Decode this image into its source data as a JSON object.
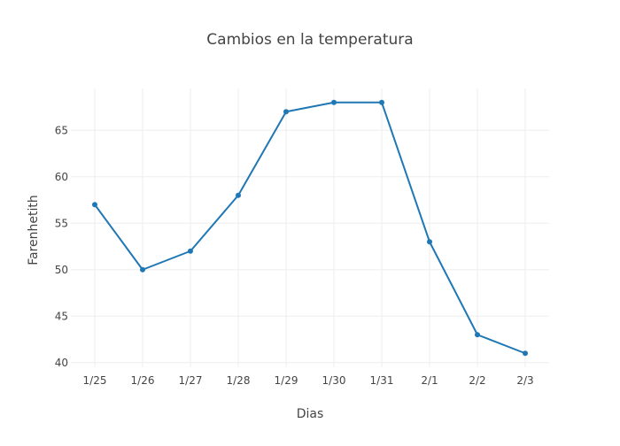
{
  "chart_data": {
    "type": "line",
    "title": "Cambios en la temperatura",
    "xlabel": "Dias",
    "ylabel": "Farenhetith",
    "categories": [
      "1/25",
      "1/26",
      "1/27",
      "1/28",
      "1/29",
      "1/30",
      "1/31",
      "2/1",
      "2/2",
      "2/3"
    ],
    "series": [
      {
        "values": [
          57,
          50,
          52,
          58,
          67,
          68,
          68,
          53,
          43,
          41
        ],
        "color": "#1f77b4",
        "markers": true
      }
    ],
    "yticks": [
      40,
      45,
      50,
      55,
      60,
      65
    ],
    "ylim": [
      39.5,
      69.5
    ],
    "grid": true,
    "legend": "none"
  }
}
